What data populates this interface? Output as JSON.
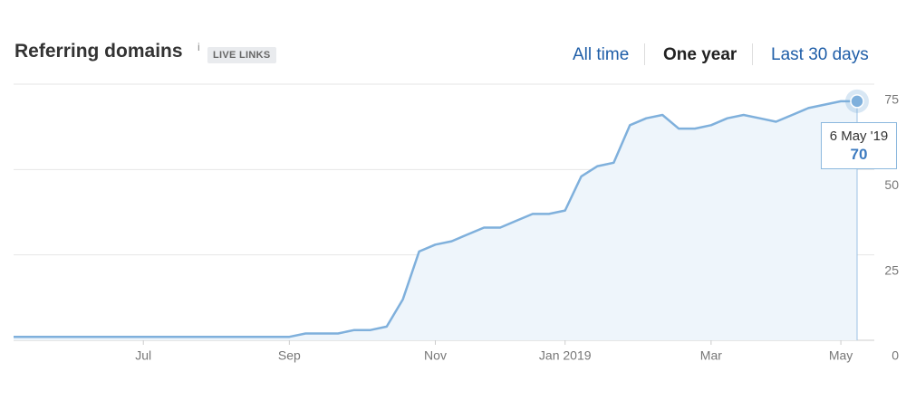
{
  "header": {
    "title": "Referring domains",
    "info": "i",
    "badge": "LIVE LINKS"
  },
  "tabs": [
    "All time",
    "One year",
    "Last 30 days"
  ],
  "active_tab": 1,
  "chart_data": {
    "type": "line",
    "categories": [
      null,
      null,
      null,
      null,
      null,
      null,
      null,
      null,
      "Jul",
      null,
      null,
      null,
      null,
      null,
      null,
      null,
      null,
      "Sep",
      null,
      null,
      null,
      null,
      null,
      null,
      null,
      null,
      "Nov",
      null,
      null,
      null,
      null,
      null,
      null,
      null,
      "Jan 2019",
      null,
      null,
      null,
      null,
      null,
      null,
      null,
      null,
      "Mar",
      null,
      null,
      null,
      null,
      null,
      null,
      null,
      "May",
      null
    ],
    "series": [
      {
        "name": "Referring domains",
        "color": "#7fb0dc",
        "values": [
          1,
          1,
          1,
          1,
          1,
          1,
          1,
          1,
          1,
          1,
          1,
          1,
          1,
          1,
          1,
          1,
          1,
          1,
          2,
          2,
          2,
          3,
          3,
          4,
          12,
          26,
          28,
          29,
          31,
          33,
          33,
          35,
          37,
          37,
          38,
          48,
          51,
          52,
          63,
          65,
          66,
          62,
          62,
          63,
          65,
          66,
          65,
          64,
          66,
          68,
          69,
          70,
          70
        ]
      }
    ],
    "ylim": [
      0,
      75
    ],
    "yticks": [
      0,
      25,
      50,
      75
    ],
    "grid": true,
    "tooltip_label": "6 May '19"
  }
}
